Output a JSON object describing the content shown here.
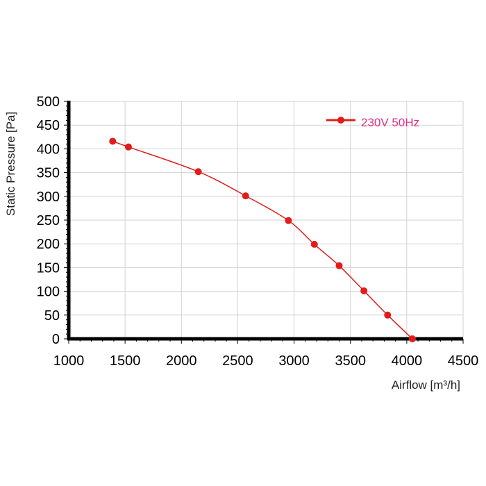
{
  "chart_data": {
    "type": "line",
    "xlabel": "Airflow [m³/h]",
    "ylabel": "Static Pressure [Pa]",
    "xlim": [
      1000,
      4500
    ],
    "ylim": [
      0,
      500
    ],
    "x_ticks": [
      1000,
      1500,
      2000,
      2500,
      3000,
      3500,
      4000,
      4500
    ],
    "y_ticks": [
      0,
      50,
      100,
      150,
      200,
      250,
      300,
      350,
      400,
      450,
      500
    ],
    "grid": true,
    "legend_position": "top-right",
    "series": [
      {
        "name": "230V 50Hz",
        "color": "#e31b1b",
        "legend_text_color": "#e0308a",
        "marker": "circle",
        "x": [
          1390,
          1530,
          2150,
          2570,
          2950,
          3180,
          3400,
          3620,
          3830,
          4050
        ],
        "y": [
          416,
          404,
          352,
          301,
          249,
          199,
          154,
          101,
          50,
          0
        ]
      }
    ]
  }
}
